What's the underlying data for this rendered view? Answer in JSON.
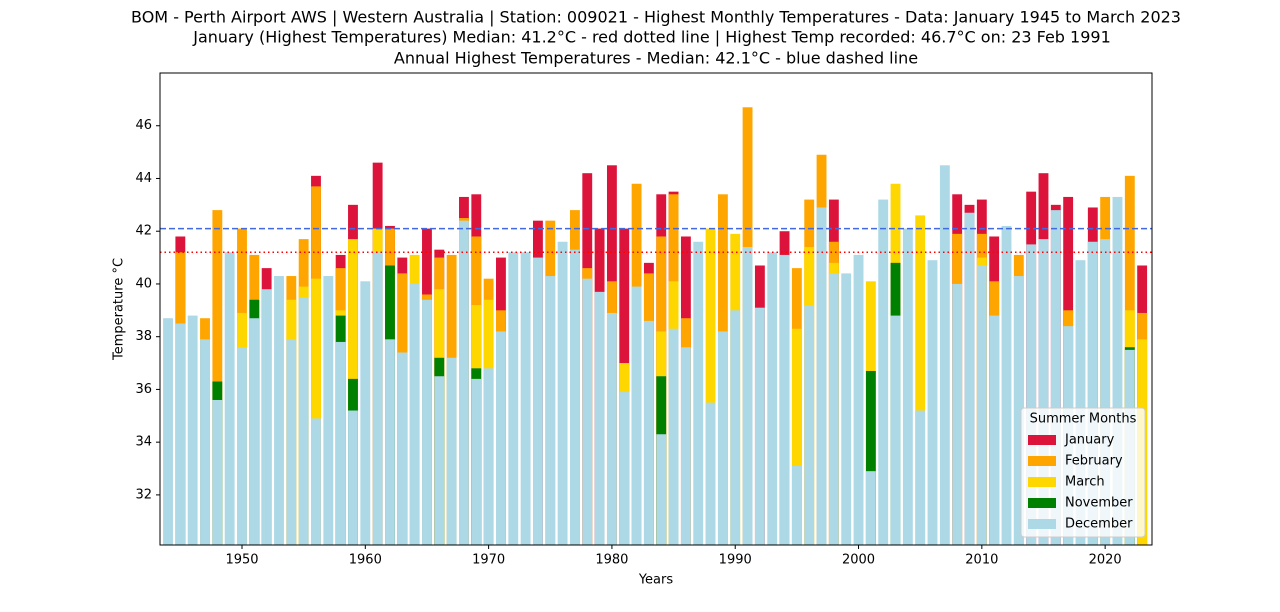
{
  "chart_data": {
    "type": "bar",
    "title": "BOM - Perth Airport AWS | Western Australia | Station: 009021 - Highest Monthly Temperatures - Data: January 1945 to March 2023",
    "subtitle": [
      "January (Highest Temperatures) Median: 41.2°C - red dotted line | Highest Temp recorded: 46.7°C on: 23 Feb 1991",
      "Annual Highest Temperatures - Median: 42.1°C - blue dashed line"
    ],
    "xlabel": "Years",
    "ylabel": "Temperature °C",
    "legend_title": "Summer Months",
    "legend": "lower right",
    "x": [
      1944,
      1945,
      1946,
      1947,
      1948,
      1949,
      1950,
      1951,
      1952,
      1953,
      1954,
      1955,
      1956,
      1957,
      1958,
      1959,
      1960,
      1961,
      1962,
      1963,
      1964,
      1965,
      1966,
      1967,
      1968,
      1969,
      1970,
      1971,
      1972,
      1973,
      1974,
      1975,
      1976,
      1977,
      1978,
      1979,
      1980,
      1981,
      1982,
      1983,
      1984,
      1985,
      1986,
      1987,
      1988,
      1989,
      1990,
      1991,
      1992,
      1993,
      1994,
      1995,
      1996,
      1997,
      1998,
      1999,
      2000,
      2001,
      2002,
      2003,
      2004,
      2005,
      2006,
      2007,
      2008,
      2009,
      2010,
      2011,
      2012,
      2013,
      2014,
      2015,
      2016,
      2017,
      2018,
      2019,
      2020,
      2021,
      2022,
      2023
    ],
    "series": [
      {
        "name": "January",
        "color": "#dc143c",
        "values": [
          null,
          41.8,
          null,
          null,
          null,
          null,
          null,
          null,
          40.6,
          null,
          null,
          null,
          44.1,
          null,
          41.1,
          43.0,
          null,
          44.6,
          42.2,
          41.0,
          null,
          42.1,
          41.3,
          null,
          43.3,
          43.4,
          null,
          41.0,
          null,
          null,
          42.4,
          null,
          null,
          null,
          44.2,
          42.1,
          44.5,
          42.1,
          null,
          40.8,
          43.4,
          43.5,
          41.8,
          null,
          null,
          null,
          null,
          null,
          40.7,
          null,
          42.0,
          null,
          null,
          null,
          43.2,
          null,
          null,
          null,
          null,
          null,
          null,
          null,
          null,
          null,
          43.4,
          43.0,
          43.2,
          41.8,
          null,
          null,
          43.5,
          44.2,
          43.0,
          43.3,
          null,
          42.9,
          null,
          null,
          null,
          40.7
        ]
      },
      {
        "name": "February",
        "color": "#ffa500",
        "values": [
          null,
          41.2,
          null,
          38.7,
          42.8,
          null,
          42.1,
          41.1,
          null,
          null,
          40.3,
          41.7,
          43.7,
          null,
          40.6,
          null,
          null,
          null,
          42.1,
          40.4,
          null,
          39.6,
          41.0,
          41.1,
          42.5,
          41.8,
          40.2,
          39.0,
          null,
          null,
          null,
          42.4,
          null,
          42.8,
          40.6,
          null,
          40.1,
          null,
          43.8,
          40.4,
          41.8,
          43.4,
          38.7,
          null,
          null,
          43.4,
          null,
          46.7,
          null,
          null,
          null,
          40.6,
          43.2,
          44.9,
          41.6,
          null,
          null,
          null,
          null,
          null,
          null,
          null,
          null,
          null,
          41.9,
          null,
          41.9,
          40.1,
          null,
          41.1,
          null,
          null,
          null,
          39.0,
          null,
          null,
          43.3,
          null,
          44.1,
          38.9
        ]
      },
      {
        "name": "March",
        "color": "#ffd700",
        "values": [
          null,
          null,
          null,
          null,
          null,
          null,
          38.9,
          null,
          null,
          null,
          39.4,
          39.9,
          40.2,
          null,
          39.0,
          41.7,
          null,
          42.1,
          null,
          null,
          41.1,
          null,
          39.8,
          null,
          null,
          39.2,
          39.4,
          null,
          null,
          null,
          null,
          null,
          null,
          null,
          null,
          null,
          null,
          37.0,
          null,
          null,
          38.2,
          40.1,
          null,
          null,
          42.1,
          null,
          41.9,
          null,
          null,
          null,
          null,
          38.3,
          41.4,
          null,
          40.8,
          null,
          null,
          40.1,
          null,
          43.8,
          null,
          42.6,
          null,
          null,
          null,
          null,
          41.0,
          null,
          null,
          null,
          null,
          null,
          null,
          null,
          null,
          null,
          null,
          null,
          39.0,
          37.9
        ]
      },
      {
        "name": "November",
        "color": "#008000",
        "values": [
          null,
          null,
          null,
          null,
          36.3,
          null,
          null,
          39.4,
          null,
          null,
          null,
          null,
          null,
          null,
          38.8,
          36.4,
          null,
          null,
          40.7,
          null,
          null,
          null,
          37.2,
          null,
          null,
          36.8,
          null,
          null,
          null,
          null,
          null,
          null,
          null,
          null,
          null,
          null,
          null,
          null,
          null,
          null,
          36.5,
          null,
          null,
          null,
          null,
          null,
          null,
          null,
          null,
          null,
          null,
          null,
          null,
          null,
          null,
          null,
          null,
          36.7,
          null,
          40.8,
          null,
          null,
          null,
          null,
          null,
          null,
          null,
          null,
          null,
          null,
          null,
          null,
          null,
          null,
          null,
          null,
          null,
          null,
          37.6,
          null
        ]
      },
      {
        "name": "December",
        "color": "#add8e6",
        "values": [
          38.7,
          38.5,
          38.8,
          37.9,
          35.6,
          41.2,
          37.6,
          38.7,
          39.8,
          40.3,
          37.9,
          39.5,
          34.9,
          40.3,
          37.8,
          35.2,
          40.1,
          41.2,
          37.9,
          37.4,
          40.0,
          39.4,
          36.5,
          37.2,
          42.4,
          36.4,
          36.8,
          38.2,
          41.2,
          41.2,
          41.0,
          40.3,
          41.6,
          41.3,
          40.2,
          39.7,
          38.9,
          35.9,
          39.9,
          38.6,
          34.3,
          38.3,
          37.6,
          41.6,
          35.5,
          38.2,
          39.0,
          41.4,
          39.1,
          41.2,
          41.1,
          33.1,
          39.2,
          42.9,
          40.4,
          40.4,
          41.1,
          32.9,
          43.2,
          38.8,
          42.1,
          35.2,
          40.9,
          44.5,
          40.0,
          42.7,
          40.7,
          38.8,
          42.2,
          40.3,
          41.5,
          41.7,
          42.8,
          38.4,
          40.9,
          41.6,
          41.7,
          43.3,
          37.5,
          null
        ]
      }
    ],
    "hlines": [
      {
        "value": 41.2,
        "color": "#ff0000",
        "style": "dotted"
      },
      {
        "value": 42.1,
        "color": "#4169e1",
        "style": "dashed"
      }
    ],
    "bar_width": 0.8,
    "xlim": [
      1943.35,
      2023.8
    ],
    "xticks": [
      1950,
      1960,
      1970,
      1980,
      1990,
      2000,
      2010,
      2020
    ],
    "ylim": [
      30.1,
      48.0
    ],
    "yticks": [
      32,
      34,
      36,
      38,
      40,
      42,
      44,
      46
    ]
  }
}
